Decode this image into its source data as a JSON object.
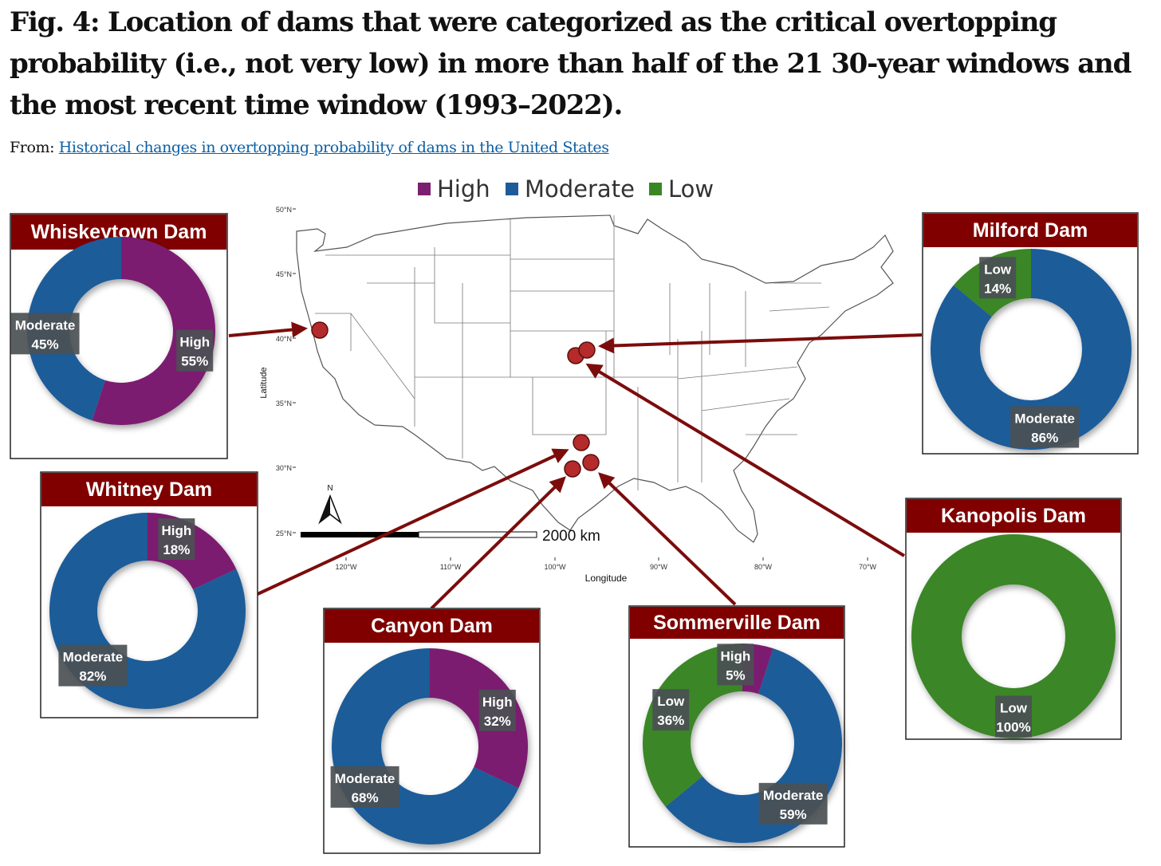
{
  "figure": {
    "title": "Fig. 4: Location of dams that were categorized as the critical overtopping probability (i.e., not very low) in more than half of the 21 30-year windows and the most recent time window (1993–2022).",
    "from_label": "From:",
    "from_link": "Historical changes in overtopping probability of dams in the United States"
  },
  "legend": [
    {
      "name": "High",
      "color": "#7b1f6f"
    },
    {
      "name": "Moderate",
      "color": "#1f5b99"
    },
    {
      "name": "Low",
      "color": "#3a8626"
    }
  ],
  "colors": {
    "header": "#800000",
    "dot": "#b52a2a",
    "arrow": "#7c0c0c",
    "label_bg": "#4b5054"
  },
  "map": {
    "xlabel": "Longitude",
    "ylabel": "Latitude",
    "x_ticks": [
      "120°W",
      "110°W",
      "100°W",
      "90°W",
      "80°W",
      "70°W"
    ],
    "y_ticks": [
      "50°N",
      "45°N",
      "40°N",
      "35°N",
      "30°N",
      "25°N"
    ],
    "scale_bar_label": "2000 km",
    "north_label": "N"
  },
  "chart_data": [
    {
      "type": "pie",
      "title": "Whiskeytown Dam",
      "slices": [
        {
          "name": "High",
          "value": 55
        },
        {
          "name": "Moderate",
          "value": 45
        }
      ]
    },
    {
      "type": "pie",
      "title": "Milford Dam",
      "slices": [
        {
          "name": "Moderate",
          "value": 86
        },
        {
          "name": "Low",
          "value": 14
        }
      ]
    },
    {
      "type": "pie",
      "title": "Whitney Dam",
      "slices": [
        {
          "name": "High",
          "value": 18
        },
        {
          "name": "Moderate",
          "value": 82
        }
      ]
    },
    {
      "type": "pie",
      "title": "Kanopolis Dam",
      "slices": [
        {
          "name": "Low",
          "value": 100
        }
      ]
    },
    {
      "type": "pie",
      "title": "Canyon Dam",
      "slices": [
        {
          "name": "High",
          "value": 32
        },
        {
          "name": "Moderate",
          "value": 68
        }
      ]
    },
    {
      "type": "pie",
      "title": "Sommerville Dam",
      "slices": [
        {
          "name": "High",
          "value": 5
        },
        {
          "name": "Moderate",
          "value": 59
        },
        {
          "name": "Low",
          "value": 36
        }
      ]
    }
  ]
}
